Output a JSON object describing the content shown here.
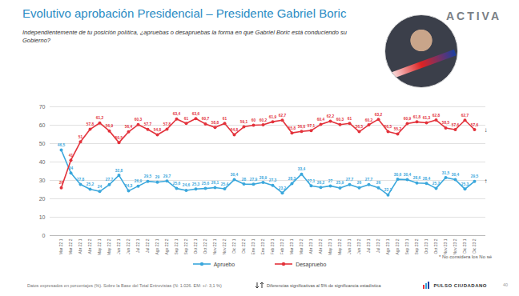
{
  "chart_data": {
    "type": "line",
    "title": "Evolutivo aprobación Presidencial – Presidente Gabriel Boric",
    "subtitle": "Independientemente de tu posición política, ¿apruebas o desapruebas la forma en que Gabriel Boric está conduciendo su Gobierno?",
    "brand": "ACTIVA",
    "note": "* No considera los No sé",
    "footnote": "Datos expresados en porcentajes (%). Sobre la Base del Total Entrevistas (N: 1.026. EM: +/- 3,1 %)",
    "significance_note": "Diferencias significativas al 5% de significancia estadística",
    "source_logo": "PULSO CIUDADANO",
    "page_number": "40",
    "categories": [
      "Mar 22 1",
      "Mar 22 2",
      "Abr 22 1",
      "Abr 22 2",
      "May 22 1",
      "May 22 2",
      "Jun 22 1",
      "Jun 22 2",
      "Jul 22 1",
      "Jul 22 2",
      "Ago 22 1",
      "Ago 22 2",
      "Sep 22 1",
      "Sep 22 2",
      "Oct 22 1",
      "Oct 22 2",
      "Nov 22 1",
      "Nov 22 2",
      "Dic 22 1",
      "Dic 22 2",
      "Ene 23 1",
      "Ene 23 2",
      "Feb 23 1",
      "Feb 23 2",
      "Mar 23 1",
      "Mar 23 2",
      "Abr 23 1",
      "Abr 23 2",
      "May 23 1",
      "May 23 2",
      "Jun 23 1",
      "Jun 23 2",
      "Jul 23 1",
      "Jul 23 2",
      "Ago 23 1",
      "Ago 23 2",
      "Sep 23 1",
      "Sep 23 2",
      "Oct 23 1",
      "Oct 23 2",
      "Nov 23 1",
      "Nov 23 2",
      "Dic 23 1",
      "Dic 23 2"
    ],
    "series": [
      {
        "name": "Apruebo",
        "color": "#3aa7dc",
        "marker": "circle",
        "end_mark": "↑",
        "values": [
          46.5,
          34,
          27.8,
          25.2,
          24,
          27.7,
          32.8,
          24.3,
          26.9,
          29.5,
          29,
          29.7,
          25.6,
          24.6,
          25.3,
          25.6,
          26.1,
          25.4,
          30.4,
          28,
          27.9,
          28.9,
          27.3,
          23.2,
          28.3,
          33.4,
          27.1,
          26.2,
          27,
          25.9,
          27.7,
          26,
          27.7,
          26,
          22.1,
          30.6,
          30.4,
          28.6,
          28.4,
          25.7,
          31.5,
          30.4,
          25.3,
          29.5
        ],
        "value_labels": [
          "46,5",
          "34",
          "27,8",
          "25,2",
          "24",
          "27,7",
          "32,8",
          "24,3",
          "26,9",
          "29,5",
          "29",
          "29,7",
          "25,6",
          "24,6",
          "25,3",
          "25,6",
          "26,1",
          "25,4",
          "30,4",
          "28",
          "27,9",
          "28,9",
          "27,3",
          "23,2",
          "28,3",
          "33,4",
          "27,1",
          "26,2",
          "27",
          "25,9",
          "27,7",
          "26",
          "27,7",
          "26",
          "22,1",
          "30,6",
          "30,4",
          "28,6",
          "28,4",
          "25,7",
          "31,5",
          "30,4",
          "25,3",
          "29,5"
        ]
      },
      {
        "name": "Desapruebo",
        "color": "#e3323b",
        "marker": "circle",
        "end_mark": "↓",
        "values": [
          26,
          41,
          51,
          57.8,
          61.2,
          56.9,
          50.5,
          56.4,
          60.3,
          57.7,
          54.8,
          57.8,
          63.4,
          61,
          63.6,
          60.7,
          58.8,
          61,
          54.8,
          59.1,
          60,
          60.2,
          61.9,
          62.7,
          55.8,
          56.6,
          57.1,
          60.4,
          62.2,
          60.3,
          61,
          56.5,
          60.2,
          63.2,
          56.5,
          55.2,
          60.9,
          61.8,
          61.3,
          62.8,
          58.5,
          57.6,
          62.7,
          57.6
        ],
        "value_labels": [
          "26",
          "41",
          "51",
          "57,8",
          "61,2",
          "56,9",
          "50,5",
          "56,4",
          "60,3",
          "57,7",
          "54,8",
          "57,8",
          "63,4",
          "61",
          "63,6",
          "60,7",
          "58,8",
          "61",
          "54,8",
          "59,1",
          "60",
          "60,2",
          "61,9",
          "62,7",
          "55,8",
          "56,6",
          "57,1",
          "60,4",
          "62,2",
          "60,3",
          "61",
          "56,5",
          "60,2",
          "63,2",
          "56,5",
          "55,2",
          "60,9",
          "61,8",
          "61,3",
          "62,8",
          "58,5",
          "57,6",
          "62,7",
          "57,6"
        ]
      }
    ],
    "ylim": [
      0,
      70
    ],
    "yticks": [
      0,
      10,
      20,
      30,
      40,
      50,
      60,
      70
    ],
    "grid": true,
    "data_labels": true,
    "legend": "bottom"
  }
}
